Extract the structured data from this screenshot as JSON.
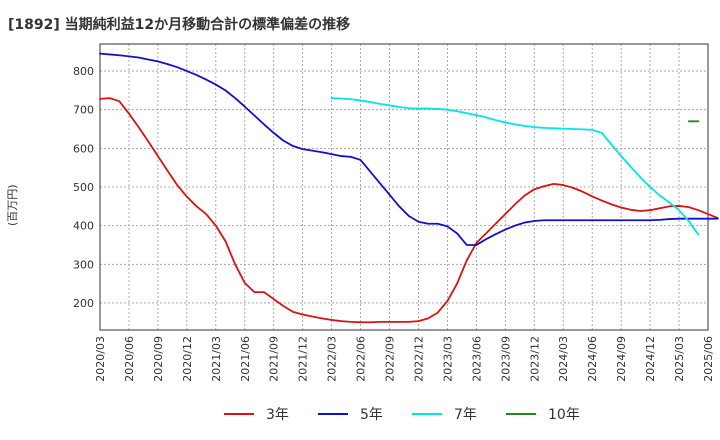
{
  "chart_data": {
    "type": "line",
    "title": "[1892]  当期純利益12か月移動合計の標準偏差の推移",
    "ylabel": "(百万円)",
    "xlabel": "",
    "ylim": [
      130,
      870
    ],
    "yticks": [
      200,
      300,
      400,
      500,
      600,
      700,
      800
    ],
    "grid": true,
    "legend_position": "bottom",
    "x_tick_labels": [
      "2020/03",
      "2020/06",
      "2020/09",
      "2020/12",
      "2021/03",
      "2021/06",
      "2021/09",
      "2021/12",
      "2022/03",
      "2022/06",
      "2022/09",
      "2022/12",
      "2023/03",
      "2023/06",
      "2023/09",
      "2023/12",
      "2024/03",
      "2024/06",
      "2024/09",
      "2024/12",
      "2025/03",
      "2025/06"
    ],
    "x_range_months": [
      0,
      63
    ],
    "series": [
      {
        "name": "3年",
        "color": "#dd1111",
        "start_month": 0,
        "values": [
          728,
          730,
          722,
          690,
          655,
          618,
          580,
          542,
          505,
          475,
          450,
          430,
          400,
          360,
          300,
          252,
          228,
          228,
          210,
          192,
          177,
          170,
          165,
          160,
          156,
          153,
          151,
          150,
          150,
          151,
          151,
          151,
          151,
          153,
          160,
          175,
          205,
          250,
          310,
          355,
          380,
          405,
          430,
          455,
          478,
          494,
          502,
          508,
          505,
          498,
          488,
          476,
          465,
          455,
          447,
          441,
          438,
          440,
          445,
          450,
          451,
          448,
          440,
          430,
          420
        ]
      },
      {
        "name": "5年",
        "color": "#1111cc",
        "start_month": 0,
        "values": [
          845,
          843,
          841,
          838,
          835,
          830,
          825,
          818,
          810,
          800,
          790,
          778,
          765,
          750,
          730,
          708,
          685,
          662,
          640,
          620,
          606,
          598,
          594,
          590,
          585,
          580,
          578,
          570,
          540,
          510,
          480,
          450,
          425,
          410,
          405,
          405,
          398,
          380,
          350,
          350,
          365,
          378,
          390,
          400,
          408,
          412,
          414,
          414,
          414,
          414,
          414,
          414,
          414,
          414,
          414,
          414,
          414,
          414,
          415,
          417,
          418,
          418,
          418,
          418,
          418
        ]
      },
      {
        "name": "7年",
        "color": "#00e5e5",
        "start_month": 24,
        "values": [
          730,
          729,
          727,
          724,
          720,
          715,
          711,
          707,
          704,
          703,
          703,
          702,
          700,
          696,
          691,
          686,
          680,
          673,
          667,
          662,
          658,
          655,
          653,
          652,
          651,
          650,
          649,
          648,
          640,
          610,
          580,
          552,
          525,
          500,
          478,
          460,
          440,
          412,
          377
        ]
      },
      {
        "name": "10年",
        "color": "#228822",
        "start_month": 61,
        "values": [
          670,
          670
        ]
      }
    ]
  }
}
